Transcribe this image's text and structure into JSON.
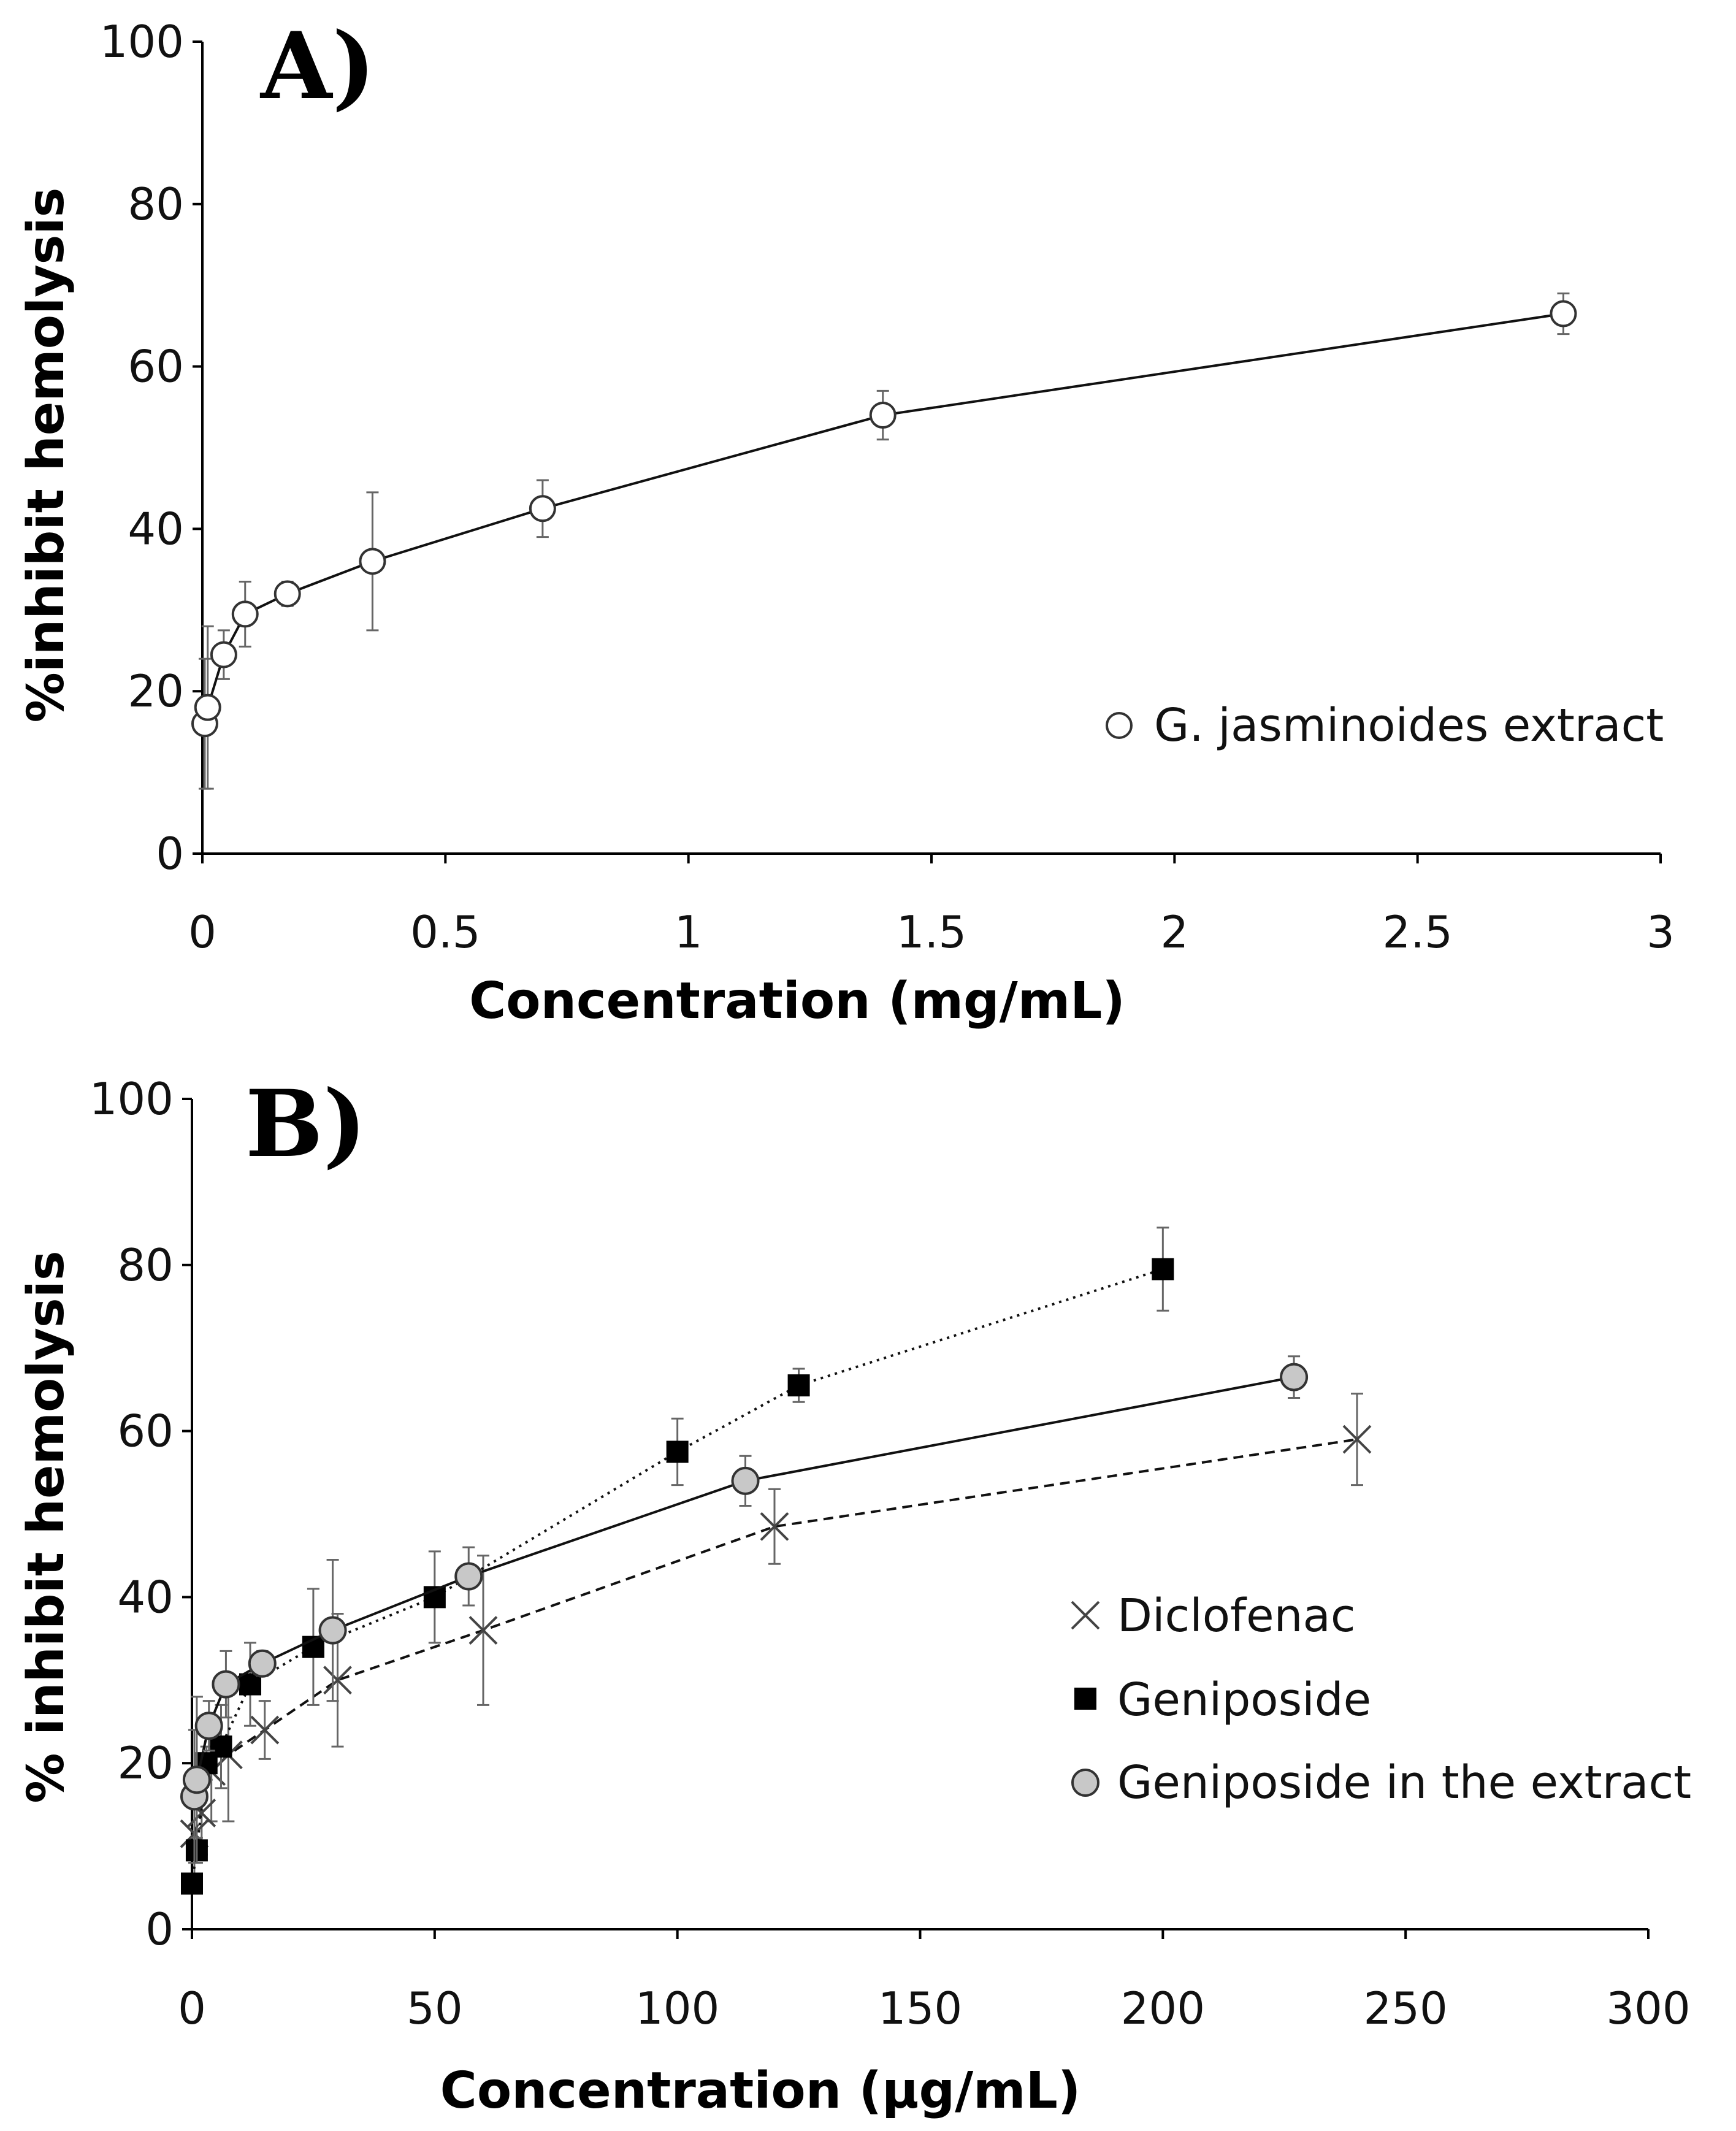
{
  "chart_data": [
    {
      "type": "line",
      "panel_label": "A)",
      "xlabel": "Concentration (mg/mL)",
      "ylabel": "%inhibit hemolysis",
      "xlim": [
        0,
        3
      ],
      "ylim": [
        0,
        100
      ],
      "xticks": [
        0,
        0.5,
        1,
        1.5,
        2,
        2.5,
        3
      ],
      "xtick_labels": [
        "0",
        "0.5",
        "1",
        "1.5",
        "2",
        "2.5",
        "3"
      ],
      "yticks": [
        0,
        20,
        40,
        60,
        80,
        100
      ],
      "ytick_labels": [
        "0",
        "20",
        "40",
        "60",
        "80",
        "100"
      ],
      "legend_position": "right",
      "series": [
        {
          "name": "G. jasminoides extract",
          "marker": "open-circle",
          "line": "solid",
          "x": [
            0.005,
            0.011,
            0.044,
            0.088,
            0.175,
            0.35,
            0.7,
            1.4,
            2.8
          ],
          "y": [
            16,
            18,
            24.5,
            29.5,
            32,
            36,
            42.5,
            54,
            66.5
          ],
          "err": [
            8,
            10,
            3,
            4,
            1.5,
            8.5,
            3.5,
            3,
            2.5
          ]
        }
      ]
    },
    {
      "type": "line",
      "panel_label": "B)",
      "xlabel": "Concentration (μg/mL)",
      "ylabel": "% inhibit hemolysis",
      "xlim": [
        0,
        300
      ],
      "ylim": [
        0,
        100
      ],
      "xticks": [
        0,
        50,
        100,
        150,
        200,
        250,
        300
      ],
      "xtick_labels": [
        "0",
        "50",
        "100",
        "150",
        "200",
        "250",
        "300"
      ],
      "yticks": [
        0,
        20,
        40,
        60,
        80,
        100
      ],
      "ytick_labels": [
        "0",
        "20",
        "40",
        "60",
        "80",
        "100"
      ],
      "legend_position": "right",
      "series": [
        {
          "name": "Diclofenac",
          "marker": "x",
          "line": "dashed",
          "x": [
            0.5,
            2,
            4,
            7.5,
            15,
            30,
            60,
            120,
            240
          ],
          "y": [
            11.5,
            14,
            19,
            21,
            24,
            30,
            36,
            48.5,
            59
          ],
          "err": [
            5,
            5,
            6,
            8,
            3.5,
            8,
            9,
            4.5,
            5.5
          ]
        },
        {
          "name": "Geniposide",
          "marker": "filled-square",
          "line": "dotted",
          "x": [
            0,
            1,
            3,
            6,
            12,
            25,
            50,
            100,
            125,
            200
          ],
          "y": [
            5.5,
            9.5,
            20,
            22,
            29.5,
            34,
            40,
            57.5,
            65.5,
            79.5
          ],
          "err": [
            1,
            1.5,
            2,
            5,
            5,
            7,
            5.5,
            4,
            2,
            5
          ]
        },
        {
          "name": "Geniposide in the extract",
          "marker": "grey-circle",
          "line": "solid",
          "x": [
            0.5,
            1,
            3.5,
            7,
            14.5,
            29,
            57,
            114,
            227
          ],
          "y": [
            16,
            18,
            24.5,
            29.5,
            32,
            36,
            42.5,
            54,
            66.5
          ],
          "err": [
            8,
            10,
            3,
            4,
            1.5,
            8.5,
            3.5,
            3,
            2.5
          ]
        }
      ]
    }
  ]
}
